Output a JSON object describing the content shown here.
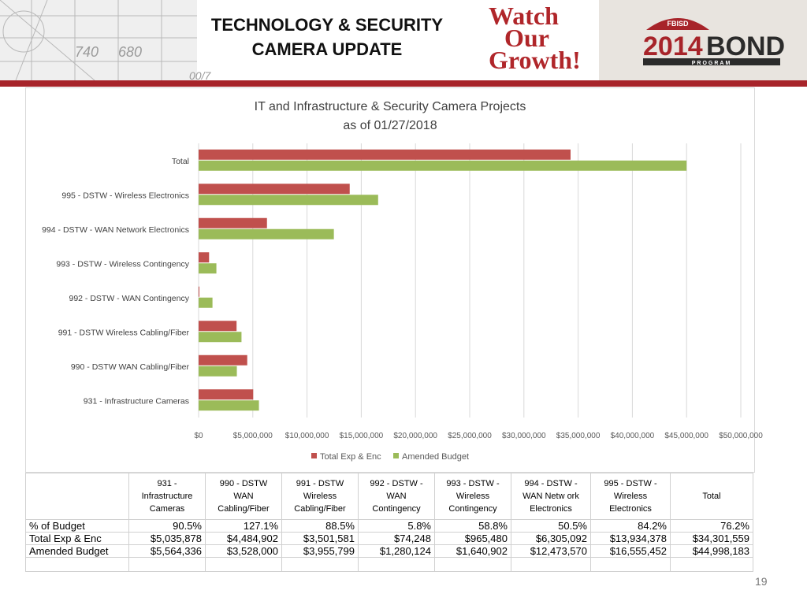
{
  "header": {
    "title_line1": "TECHNOLOGY & SECURITY",
    "title_line2": "CAMERA UPDATE",
    "watch_logo": [
      "Watch",
      "Our",
      "Growth!"
    ],
    "bond_logo": {
      "small": "FBISD",
      "year": "2014",
      "word": "BOND",
      "sub": "PROGRAM"
    },
    "blueprint_marks": [
      "740",
      "680",
      "00/7"
    ]
  },
  "colors": {
    "total_exp": "#c0504d",
    "amended": "#9bbb59",
    "rule": "#a7242a"
  },
  "chart_data": {
    "type": "bar",
    "orientation": "horizontal",
    "title": "IT and Infrastructure & Security Camera Projects",
    "subtitle": "as of 01/27/2018",
    "categories": [
      "Total",
      "995 - DSTW - Wireless Electronics",
      "994 - DSTW - WAN Network Electronics",
      "993 - DSTW - Wireless Contingency",
      "992 - DSTW - WAN Contingency",
      "991 - DSTW Wireless Cabling/Fiber",
      "990 - DSTW WAN Cabling/Fiber",
      "931 - Infrastructure Cameras"
    ],
    "series": [
      {
        "name": "Total Exp & Enc",
        "values": [
          34301559,
          13934378,
          6305092,
          965480,
          74248,
          3501581,
          4484902,
          5035878
        ]
      },
      {
        "name": "Amended Budget",
        "values": [
          44998183,
          16555452,
          12473570,
          1640902,
          1280124,
          3955799,
          3528000,
          5564336
        ]
      }
    ],
    "xlim": [
      0,
      50000000
    ],
    "xticks": [
      "$0",
      "$5,000,000",
      "$10,000,000",
      "$15,000,000",
      "$20,000,000",
      "$25,000,000",
      "$30,000,000",
      "$35,000,000",
      "$40,000,000",
      "$45,000,000",
      "$50,000,000"
    ],
    "grid": true,
    "legend": "bottom"
  },
  "table": {
    "columns": [
      [
        "931 -",
        "Infrastructure",
        "Cameras"
      ],
      [
        "990 - DSTW",
        "WAN",
        "Cabling/Fiber"
      ],
      [
        "991 - DSTW",
        "Wireless",
        "Cabling/Fiber"
      ],
      [
        "992 - DSTW -",
        "WAN",
        "Contingency"
      ],
      [
        "993 - DSTW -",
        "Wireless",
        "Contingency"
      ],
      [
        "994 - DSTW -",
        "WAN Netw ork",
        "Electronics"
      ],
      [
        "995 - DSTW -",
        "Wireless",
        "Electronics"
      ],
      [
        "Total"
      ]
    ],
    "rows": [
      {
        "label": "% of Budget",
        "values": [
          "90.5%",
          "127.1%",
          "88.5%",
          "5.8%",
          "58.8%",
          "50.5%",
          "84.2%",
          "76.2%"
        ]
      },
      {
        "label": "Total Exp & Enc",
        "values": [
          "$5,035,878",
          "$4,484,902",
          "$3,501,581",
          "$74,248",
          "$965,480",
          "$6,305,092",
          "$13,934,378",
          "$34,301,559"
        ]
      },
      {
        "label": "Amended Budget",
        "values": [
          "$5,564,336",
          "$3,528,000",
          "$3,955,799",
          "$1,280,124",
          "$1,640,902",
          "$12,473,570",
          "$16,555,452",
          "$44,998,183"
        ]
      }
    ]
  },
  "page_number": "19"
}
